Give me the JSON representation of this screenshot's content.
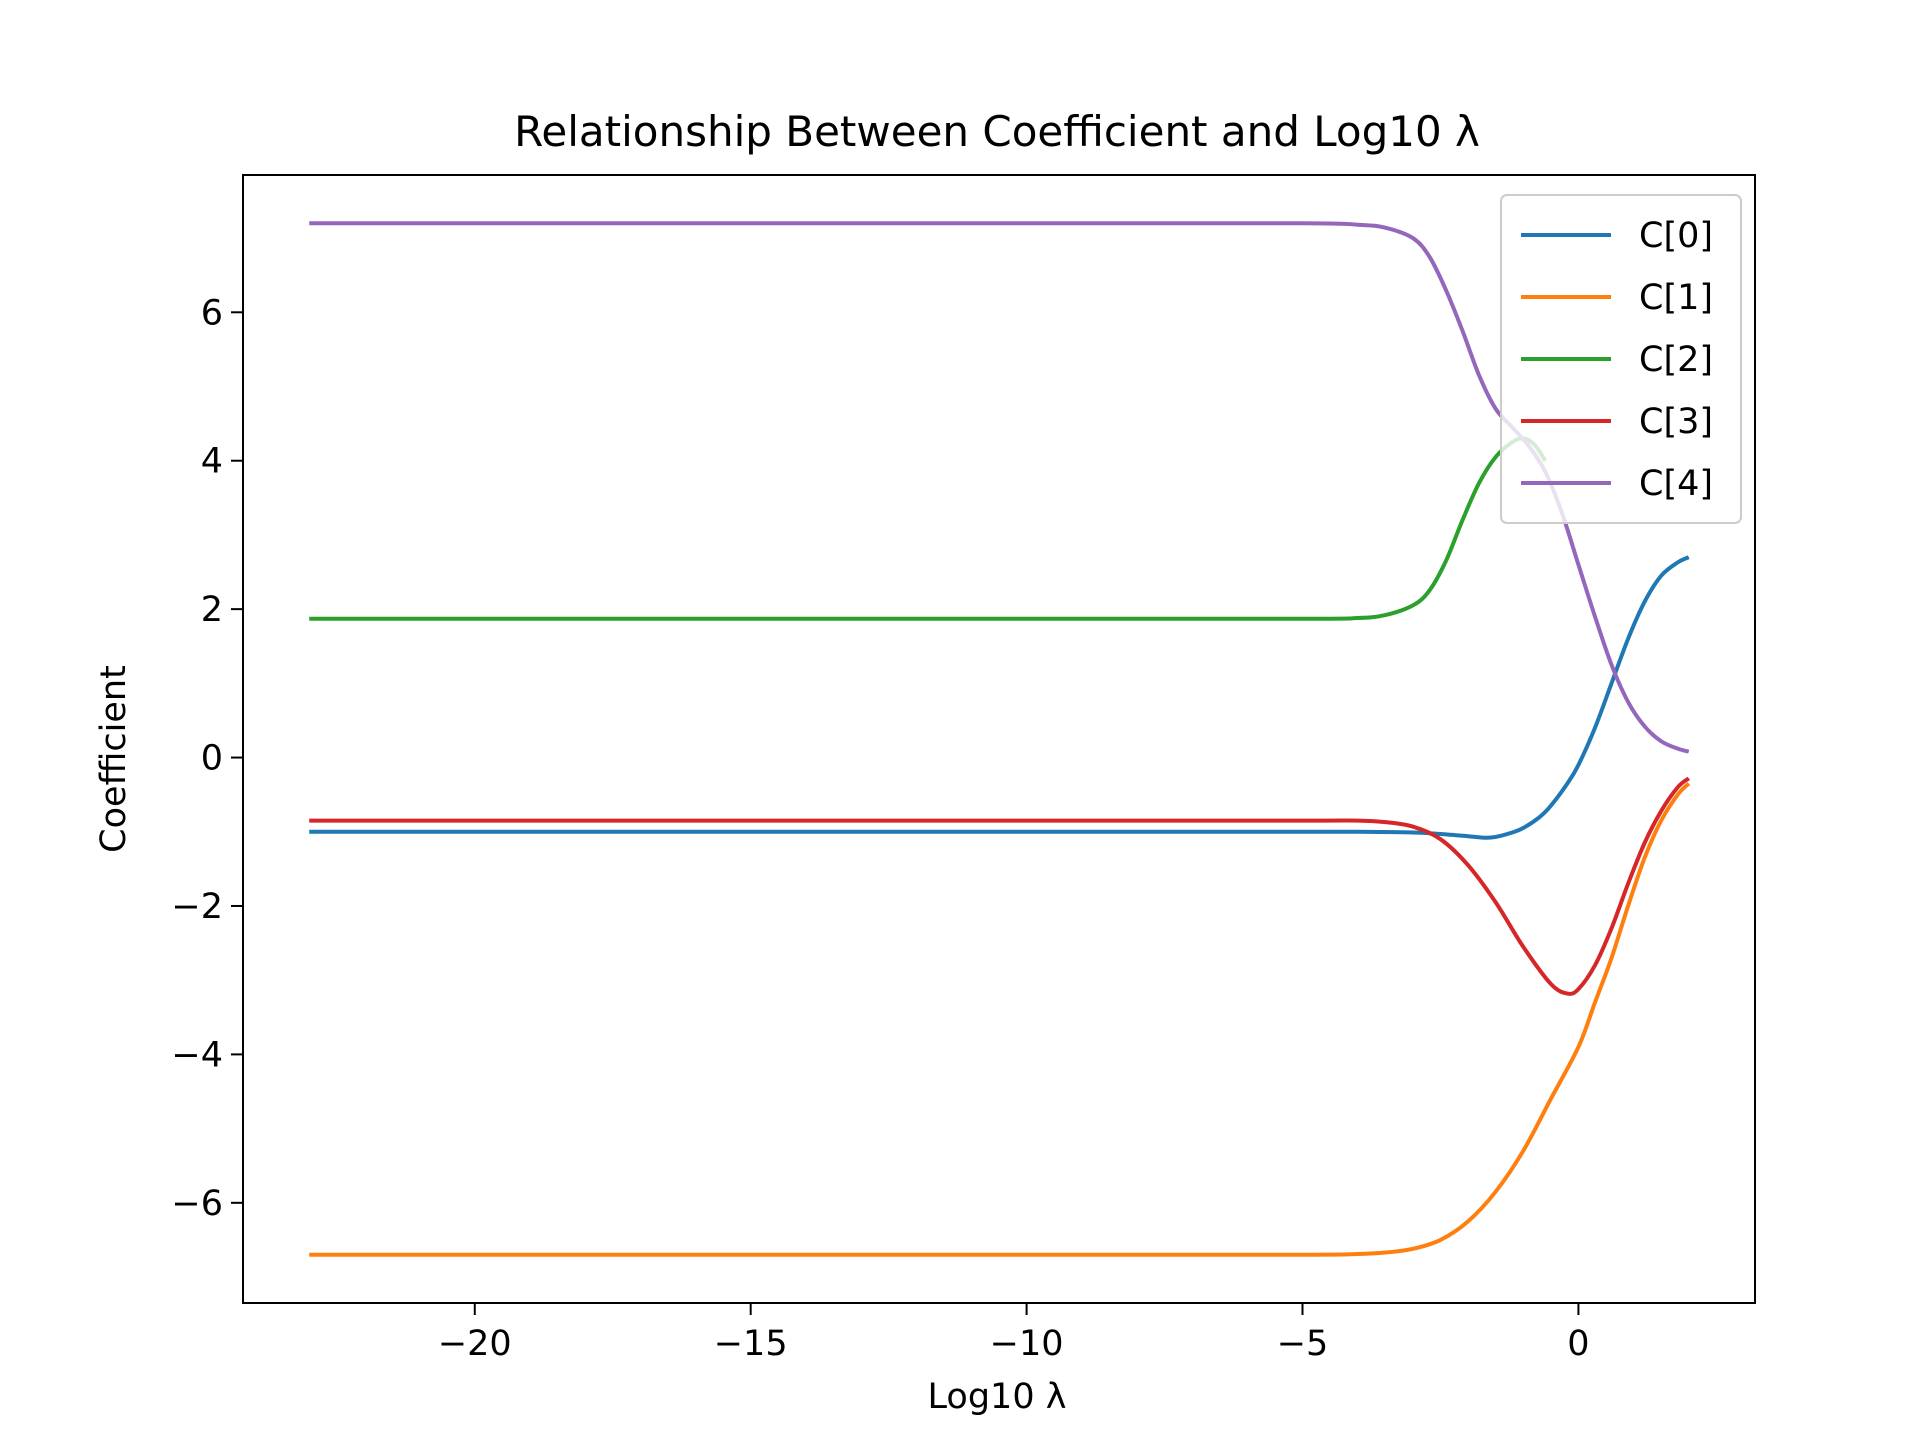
{
  "chart_data": {
    "type": "line",
    "title": "Relationship Between Coefficient and Log10 λ",
    "xlabel": "Log10 λ",
    "ylabel": "Coefficient",
    "xlim": [
      -24.2,
      3.2
    ],
    "ylim": [
      -7.35,
      7.85
    ],
    "xticks": [
      -20,
      -15,
      -10,
      -5,
      0
    ],
    "xtick_labels": [
      "−20",
      "−15",
      "−10",
      "−5",
      "0"
    ],
    "yticks": [
      -6,
      -4,
      -2,
      0,
      2,
      4,
      6
    ],
    "ytick_labels": [
      "−6",
      "−4",
      "−2",
      "0",
      "2",
      "4",
      "6"
    ],
    "grid": false,
    "legend_position": "top-right",
    "series": [
      {
        "name": "C[0]",
        "color": "#1f77b4",
        "points": [
          [
            -23,
            -1.0
          ],
          [
            -10,
            -1.0
          ],
          [
            -5,
            -1.0
          ],
          [
            -4,
            -1.0
          ],
          [
            -3,
            -1.01
          ],
          [
            -2.5,
            -1.03
          ],
          [
            -2,
            -1.06
          ],
          [
            -1.7,
            -1.08
          ],
          [
            -1.5,
            -1.07
          ],
          [
            -1.2,
            -1.01
          ],
          [
            -1,
            -0.95
          ],
          [
            -0.7,
            -0.8
          ],
          [
            -0.5,
            -0.65
          ],
          [
            -0.2,
            -0.35
          ],
          [
            0,
            -0.1
          ],
          [
            0.3,
            0.4
          ],
          [
            0.6,
            1.0
          ],
          [
            0.9,
            1.6
          ],
          [
            1.2,
            2.1
          ],
          [
            1.5,
            2.45
          ],
          [
            1.8,
            2.63
          ],
          [
            2,
            2.7
          ]
        ]
      },
      {
        "name": "C[1]",
        "color": "#ff7f0e",
        "points": [
          [
            -23,
            -6.7
          ],
          [
            -10,
            -6.7
          ],
          [
            -5,
            -6.7
          ],
          [
            -4,
            -6.69
          ],
          [
            -3.5,
            -6.67
          ],
          [
            -3,
            -6.62
          ],
          [
            -2.5,
            -6.5
          ],
          [
            -2,
            -6.25
          ],
          [
            -1.5,
            -5.85
          ],
          [
            -1,
            -5.3
          ],
          [
            -0.5,
            -4.6
          ],
          [
            0,
            -3.9
          ],
          [
            0.3,
            -3.3
          ],
          [
            0.6,
            -2.7
          ],
          [
            0.9,
            -2.0
          ],
          [
            1.2,
            -1.35
          ],
          [
            1.5,
            -0.85
          ],
          [
            1.8,
            -0.5
          ],
          [
            2,
            -0.35
          ]
        ]
      },
      {
        "name": "C[2]",
        "color": "#2ca02c",
        "points": [
          [
            -23,
            1.87
          ],
          [
            -10,
            1.87
          ],
          [
            -5,
            1.87
          ],
          [
            -4,
            1.88
          ],
          [
            -3.5,
            1.92
          ],
          [
            -3,
            2.05
          ],
          [
            -2.7,
            2.25
          ],
          [
            -2.4,
            2.65
          ],
          [
            -2.1,
            3.2
          ],
          [
            -1.8,
            3.7
          ],
          [
            -1.5,
            4.05
          ],
          [
            -1.2,
            4.25
          ],
          [
            -1,
            4.3
          ],
          [
            -0.8,
            4.22
          ],
          [
            -0.6,
            4.0
          ]
        ]
      },
      {
        "name": "C[3]",
        "color": "#d62728",
        "points": [
          [
            -23,
            -0.85
          ],
          [
            -10,
            -0.85
          ],
          [
            -5,
            -0.85
          ],
          [
            -4,
            -0.85
          ],
          [
            -3.5,
            -0.87
          ],
          [
            -3,
            -0.93
          ],
          [
            -2.5,
            -1.1
          ],
          [
            -2,
            -1.45
          ],
          [
            -1.5,
            -1.95
          ],
          [
            -1,
            -2.55
          ],
          [
            -0.5,
            -3.05
          ],
          [
            -0.2,
            -3.18
          ],
          [
            0,
            -3.12
          ],
          [
            0.3,
            -2.8
          ],
          [
            0.6,
            -2.3
          ],
          [
            0.9,
            -1.7
          ],
          [
            1.2,
            -1.15
          ],
          [
            1.5,
            -0.72
          ],
          [
            1.8,
            -0.4
          ],
          [
            2,
            -0.28
          ]
        ]
      },
      {
        "name": "C[4]",
        "color": "#9467bd",
        "points": [
          [
            -23,
            7.2
          ],
          [
            -10,
            7.2
          ],
          [
            -5,
            7.2
          ],
          [
            -4,
            7.18
          ],
          [
            -3.5,
            7.14
          ],
          [
            -3,
            7.0
          ],
          [
            -2.7,
            6.75
          ],
          [
            -2.4,
            6.3
          ],
          [
            -2.1,
            5.75
          ],
          [
            -1.8,
            5.15
          ],
          [
            -1.5,
            4.7
          ],
          [
            -1.2,
            4.45
          ],
          [
            -0.9,
            4.2
          ],
          [
            -0.6,
            3.85
          ],
          [
            -0.3,
            3.3
          ],
          [
            0,
            2.6
          ],
          [
            0.3,
            1.9
          ],
          [
            0.6,
            1.25
          ],
          [
            0.9,
            0.75
          ],
          [
            1.2,
            0.42
          ],
          [
            1.5,
            0.22
          ],
          [
            1.8,
            0.12
          ],
          [
            2,
            0.08
          ]
        ]
      }
    ]
  }
}
